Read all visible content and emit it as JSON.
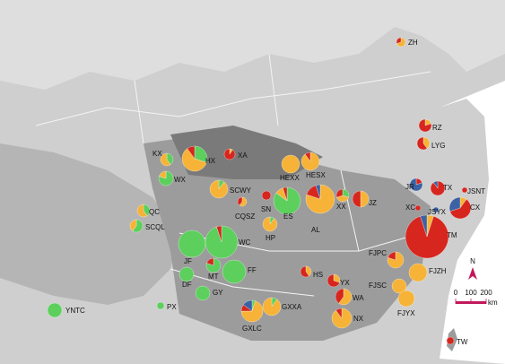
{
  "slice_colors": [
    "#5ccf5c",
    "#f6b337",
    "#d7261e",
    "#3c62a4"
  ],
  "sites": [
    {
      "label": "ZH",
      "slices": [
        0,
        70,
        30,
        0
      ]
    },
    {
      "label": "RZ",
      "slices": [
        0,
        20,
        80,
        0
      ]
    },
    {
      "label": "LYG",
      "slices": [
        0,
        40,
        60,
        0
      ]
    },
    {
      "label": "XA",
      "slices": [
        0,
        10,
        90,
        0
      ]
    },
    {
      "label": "KX",
      "slices": [
        40,
        60,
        0,
        0
      ]
    },
    {
      "label": "HX",
      "slices": [
        30,
        60,
        10,
        0
      ]
    },
    {
      "label": "WX",
      "slices": [
        80,
        20,
        0,
        0
      ]
    },
    {
      "label": "HEXX",
      "slices": [
        0,
        100,
        0,
        0
      ]
    },
    {
      "label": "HESX",
      "slices": [
        0,
        90,
        10,
        0
      ]
    },
    {
      "label": "SCWY",
      "slices": [
        10,
        90,
        0,
        0
      ]
    },
    {
      "label": "SN",
      "slices": [
        0,
        0,
        100,
        0
      ]
    },
    {
      "label": "CQSZ",
      "slices": [
        0,
        60,
        40,
        0
      ]
    },
    {
      "label": "ES",
      "slices": [
        85,
        10,
        5,
        0
      ]
    },
    {
      "label": "AL",
      "slices": [
        0,
        80,
        15,
        5
      ]
    },
    {
      "label": "XX",
      "slices": [
        30,
        40,
        30,
        0
      ]
    },
    {
      "label": "JZ",
      "slices": [
        0,
        50,
        50,
        0
      ]
    },
    {
      "label": "JR",
      "slices": [
        0,
        0,
        20,
        80
      ]
    },
    {
      "label": "TX",
      "slices": [
        0,
        0,
        90,
        10
      ]
    },
    {
      "label": "JSNT",
      "slices": [
        0,
        0,
        100,
        0
      ]
    },
    {
      "label": "XC",
      "slices": [
        0,
        0,
        100,
        0
      ]
    },
    {
      "label": "JSYX",
      "slices": [
        0,
        0,
        0,
        100
      ]
    },
    {
      "label": "CX",
      "slices": [
        0,
        10,
        60,
        30
      ]
    },
    {
      "label": "TM",
      "slices": [
        0,
        5,
        90,
        5
      ]
    },
    {
      "label": "QC",
      "slices": [
        40,
        60,
        0,
        0
      ]
    },
    {
      "label": "SCQL",
      "slices": [
        60,
        40,
        0,
        0
      ]
    },
    {
      "label": "HP",
      "slices": [
        10,
        90,
        0,
        0
      ]
    },
    {
      "label": "WC",
      "slices": [
        95,
        0,
        5,
        0
      ]
    },
    {
      "label": "JF",
      "slices": [
        100,
        0,
        0,
        0
      ]
    },
    {
      "label": "MT",
      "slices": [
        80,
        0,
        20,
        0
      ]
    },
    {
      "label": "FF",
      "slices": [
        100,
        0,
        0,
        0
      ]
    },
    {
      "label": "DF",
      "slices": [
        100,
        0,
        0,
        0
      ]
    },
    {
      "label": "GY",
      "slices": [
        100,
        0,
        0,
        0
      ]
    },
    {
      "label": "FJPC",
      "slices": [
        0,
        80,
        20,
        0
      ]
    },
    {
      "label": "FJZH",
      "slices": [
        0,
        100,
        0,
        0
      ]
    },
    {
      "label": "HS",
      "slices": [
        0,
        40,
        60,
        0
      ]
    },
    {
      "label": "YX",
      "slices": [
        0,
        30,
        70,
        0
      ]
    },
    {
      "label": "FJSC",
      "slices": [
        0,
        100,
        0,
        0
      ]
    },
    {
      "label": "WA",
      "slices": [
        0,
        60,
        40,
        0
      ]
    },
    {
      "label": "FJYX",
      "slices": [
        0,
        100,
        0,
        0
      ]
    },
    {
      "label": "GXXA",
      "slices": [
        10,
        90,
        0,
        0
      ]
    },
    {
      "label": "GXLC",
      "slices": [
        5,
        70,
        10,
        15
      ]
    },
    {
      "label": "NX",
      "slices": [
        0,
        90,
        10,
        0
      ]
    },
    {
      "label": "YNTC",
      "slices": [
        100,
        0,
        0,
        0
      ]
    },
    {
      "label": "PX",
      "slices": [
        100,
        0,
        0,
        0
      ]
    },
    {
      "label": "TW",
      "slices": [
        0,
        0,
        100,
        0
      ]
    }
  ],
  "scale_bar": {
    "north": "N",
    "ticks": [
      0,
      100,
      200
    ],
    "unit": "km"
  }
}
